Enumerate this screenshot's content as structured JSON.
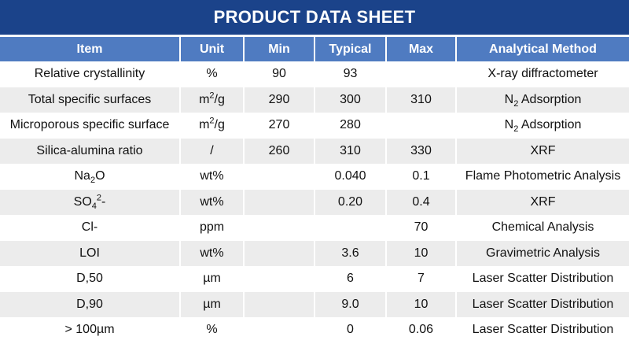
{
  "title": "PRODUCT DATA SHEET",
  "columns": [
    "Item",
    "Unit",
    "Min",
    "Typical",
    "Max",
    "Analytical Method"
  ],
  "rows": [
    [
      [
        [
          "Relative crystallinity",
          ""
        ]
      ],
      [
        [
          "%",
          ""
        ]
      ],
      [
        [
          "90",
          ""
        ]
      ],
      [
        [
          "93",
          ""
        ]
      ],
      [
        [
          "",
          ""
        ]
      ],
      [
        [
          "X-ray diffractometer",
          ""
        ]
      ]
    ],
    [
      [
        [
          "Total specific surfaces",
          ""
        ]
      ],
      [
        [
          "m",
          ""
        ],
        [
          "2",
          "sup"
        ],
        [
          "/g",
          ""
        ]
      ],
      [
        [
          "290",
          ""
        ]
      ],
      [
        [
          "300",
          ""
        ]
      ],
      [
        [
          "310",
          ""
        ]
      ],
      [
        [
          "N",
          ""
        ],
        [
          "2",
          "sub"
        ],
        [
          " Adsorption",
          ""
        ]
      ]
    ],
    [
      [
        [
          "Microporous specific surface",
          ""
        ]
      ],
      [
        [
          "m",
          ""
        ],
        [
          "2",
          "sup"
        ],
        [
          "/g",
          ""
        ]
      ],
      [
        [
          "270",
          ""
        ]
      ],
      [
        [
          "280",
          ""
        ]
      ],
      [
        [
          "",
          ""
        ]
      ],
      [
        [
          "N",
          ""
        ],
        [
          "2",
          "sub"
        ],
        [
          " Adsorption",
          ""
        ]
      ]
    ],
    [
      [
        [
          "Silica-alumina ratio",
          ""
        ]
      ],
      [
        [
          "/",
          ""
        ]
      ],
      [
        [
          "260",
          ""
        ]
      ],
      [
        [
          "310",
          ""
        ]
      ],
      [
        [
          "330",
          ""
        ]
      ],
      [
        [
          "XRF",
          ""
        ]
      ]
    ],
    [
      [
        [
          "Na",
          ""
        ],
        [
          "2",
          "sub"
        ],
        [
          "O",
          ""
        ]
      ],
      [
        [
          "wt%",
          ""
        ]
      ],
      [
        [
          "",
          ""
        ]
      ],
      [
        [
          "0.040",
          ""
        ]
      ],
      [
        [
          "0.1",
          ""
        ]
      ],
      [
        [
          "Flame Photometric Analysis",
          ""
        ]
      ]
    ],
    [
      [
        [
          "SO",
          ""
        ],
        [
          "4",
          "sub"
        ],
        [
          "2",
          "sup"
        ],
        [
          "-",
          ""
        ]
      ],
      [
        [
          "wt%",
          ""
        ]
      ],
      [
        [
          "",
          ""
        ]
      ],
      [
        [
          "0.20",
          ""
        ]
      ],
      [
        [
          "0.4",
          ""
        ]
      ],
      [
        [
          "XRF",
          ""
        ]
      ]
    ],
    [
      [
        [
          "Cl-",
          ""
        ]
      ],
      [
        [
          "ppm",
          ""
        ]
      ],
      [
        [
          "",
          ""
        ]
      ],
      [
        [
          "",
          ""
        ]
      ],
      [
        [
          "70",
          ""
        ]
      ],
      [
        [
          "Chemical Analysis",
          ""
        ]
      ]
    ],
    [
      [
        [
          "LOI",
          ""
        ]
      ],
      [
        [
          "wt%",
          ""
        ]
      ],
      [
        [
          "",
          ""
        ]
      ],
      [
        [
          "3.6",
          ""
        ]
      ],
      [
        [
          "10",
          ""
        ]
      ],
      [
        [
          "Gravimetric Analysis",
          ""
        ]
      ]
    ],
    [
      [
        [
          "D,50",
          ""
        ]
      ],
      [
        [
          "µm",
          ""
        ]
      ],
      [
        [
          "",
          ""
        ]
      ],
      [
        [
          "6",
          ""
        ]
      ],
      [
        [
          "7",
          ""
        ]
      ],
      [
        [
          "Laser Scatter Distribution",
          ""
        ]
      ]
    ],
    [
      [
        [
          "D,90",
          ""
        ]
      ],
      [
        [
          "µm",
          ""
        ]
      ],
      [
        [
          "",
          ""
        ]
      ],
      [
        [
          "9.0",
          ""
        ]
      ],
      [
        [
          "10",
          ""
        ]
      ],
      [
        [
          "Laser Scatter Distribution",
          ""
        ]
      ]
    ],
    [
      [
        [
          "> 100µm",
          ""
        ]
      ],
      [
        [
          "%",
          ""
        ]
      ],
      [
        [
          "",
          ""
        ]
      ],
      [
        [
          "0",
          ""
        ]
      ],
      [
        [
          "0.06",
          ""
        ]
      ],
      [
        [
          "Laser Scatter Distribution",
          ""
        ]
      ]
    ]
  ],
  "colors": {
    "title_bg": "#1b438a",
    "header_bg": "#4f7bc1",
    "alt_row_bg": "#ececec"
  }
}
